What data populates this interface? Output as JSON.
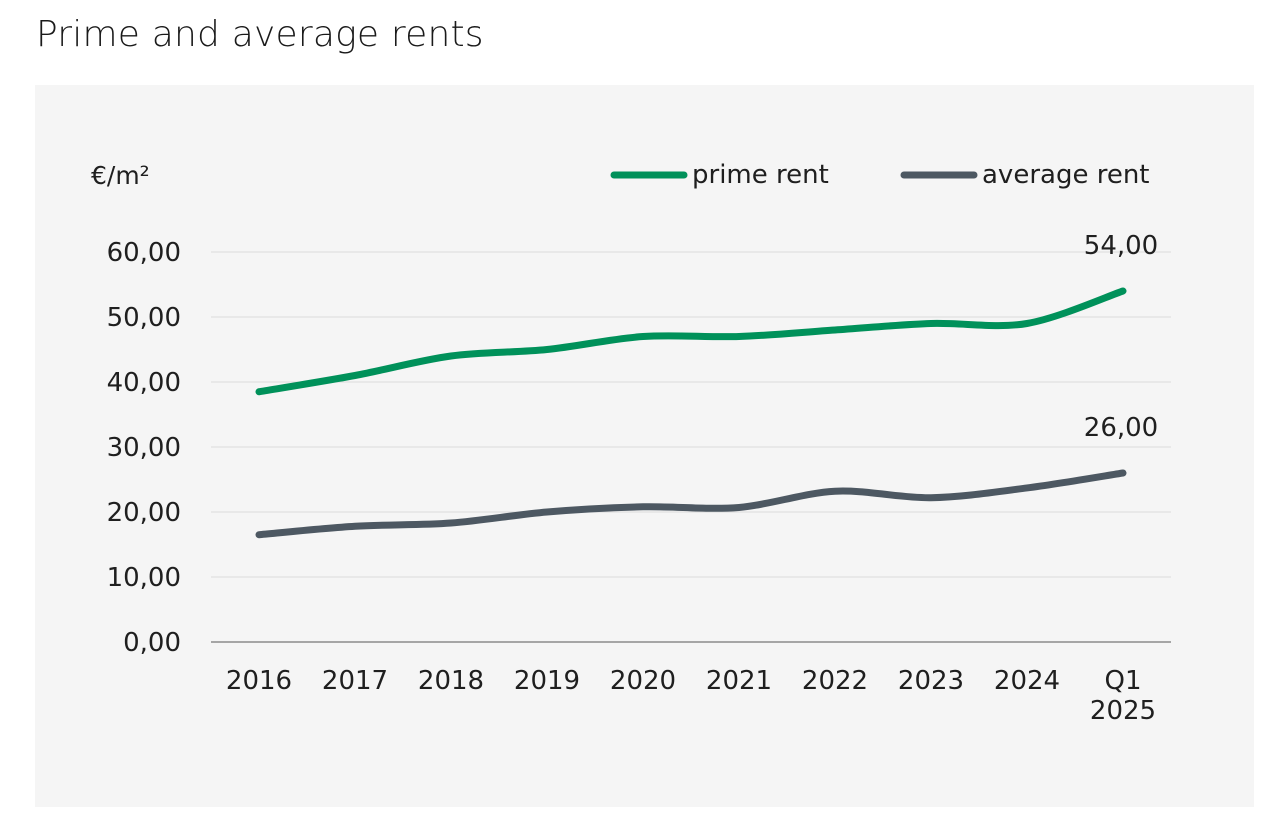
{
  "title": "Prime and average rents",
  "colors": {
    "prime": "#00915a",
    "average": "#4d5862",
    "grid": "#dcdcdc",
    "axis": "#8c8c8c",
    "panel": "#f5f5f5"
  },
  "chart_data": {
    "type": "line",
    "title": "Prime and average rents",
    "ylabel": "€/m²",
    "xlabel": "",
    "ylim": [
      0,
      60
    ],
    "yticks": [
      "60,00",
      "50,00",
      "40,00",
      "30,00",
      "20,00",
      "10,00",
      "0,00"
    ],
    "ytick_values": [
      60,
      50,
      40,
      30,
      20,
      10,
      0
    ],
    "categories": [
      [
        "2016"
      ],
      [
        "2017"
      ],
      [
        "2018"
      ],
      [
        "2019"
      ],
      [
        "2020"
      ],
      [
        "2021"
      ],
      [
        "2022"
      ],
      [
        "2023"
      ],
      [
        "2024"
      ],
      [
        "Q1",
        "2025"
      ]
    ],
    "grid": true,
    "legend_position": "top-right",
    "series": [
      {
        "name": "prime rent",
        "color": "#00915a",
        "values": [
          38.5,
          41.0,
          44.0,
          45.0,
          47.0,
          47.0,
          48.0,
          49.0,
          49.0,
          54.0
        ],
        "end_label": "54,00"
      },
      {
        "name": "average rent",
        "color": "#4d5862",
        "values": [
          16.5,
          17.8,
          18.3,
          20.0,
          20.8,
          20.7,
          23.2,
          22.2,
          23.7,
          26.0
        ],
        "end_label": "26,00"
      }
    ]
  }
}
